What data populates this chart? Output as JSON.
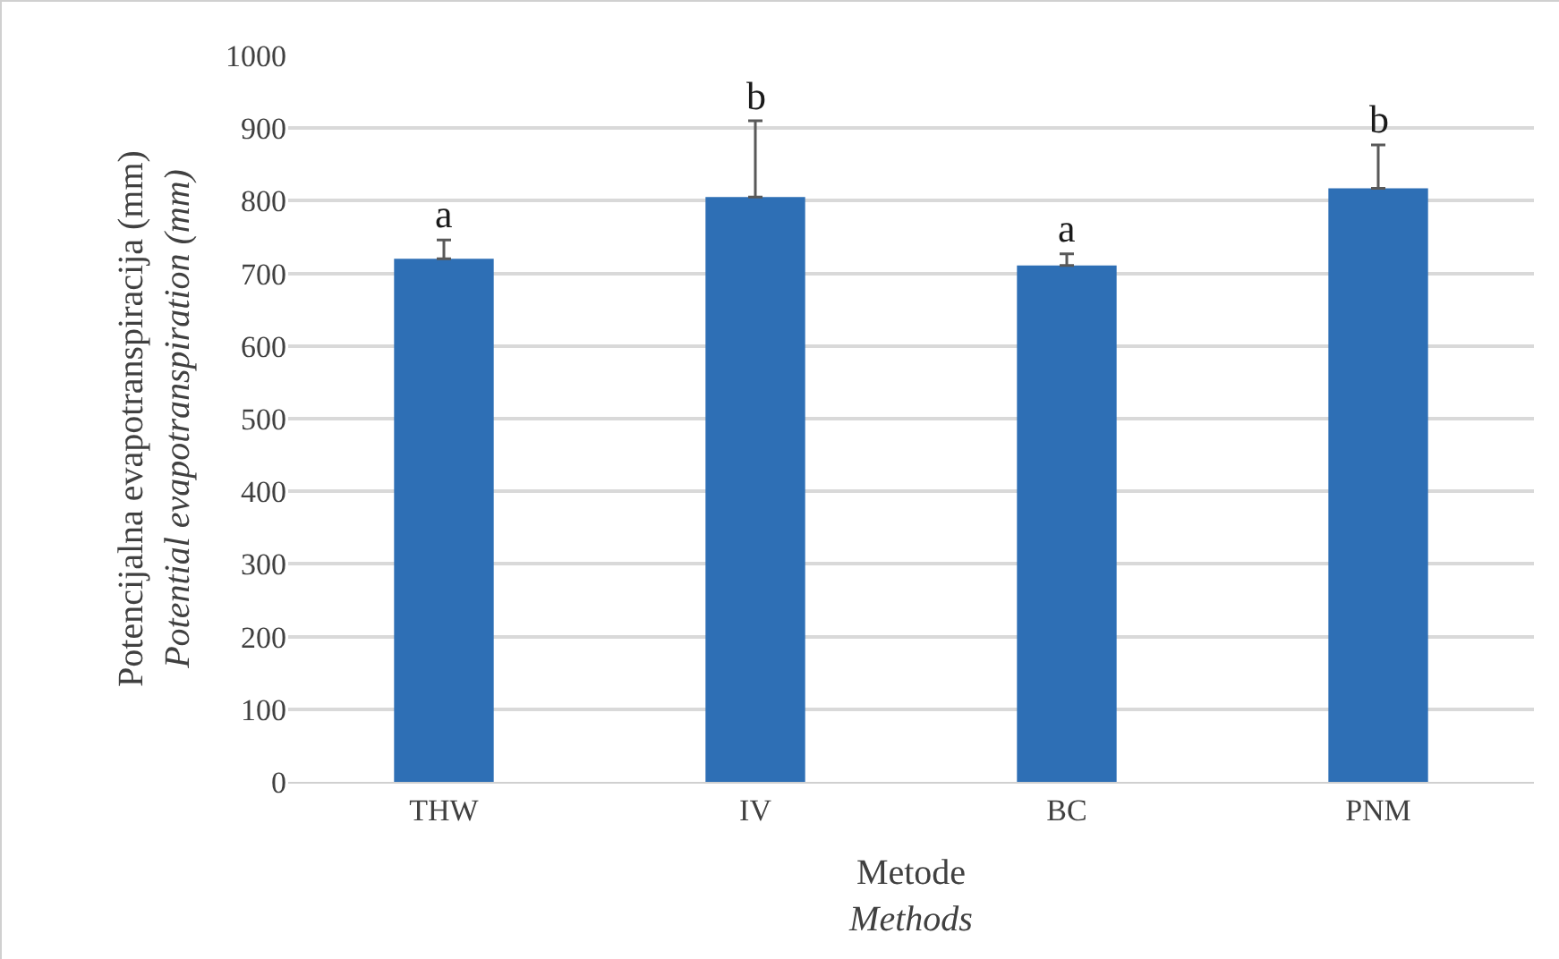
{
  "chart_data": {
    "type": "bar",
    "xlabel": "Metode\nMethods",
    "ylabel": "Potencijalna evapotranspiracija (mm)\nPotential evapotranspiration (mm)",
    "categories": [
      "THW",
      "IV",
      "BC",
      "PNM"
    ],
    "values": [
      720,
      805,
      711,
      817
    ],
    "errors": [
      [
        720,
        746
      ],
      [
        805,
        910
      ],
      [
        711,
        727
      ],
      [
        817,
        877
      ]
    ],
    "color": "#2e6fb5",
    "ylim": [
      0,
      1000
    ],
    "yticks": [
      0,
      100,
      200,
      300,
      400,
      500,
      600,
      700,
      800,
      900,
      1000
    ],
    "grid": "y",
    "annotations": [
      {
        "text": "a",
        "x": "THW",
        "y": 720
      },
      {
        "text": "b",
        "x": "IV",
        "y": 805
      },
      {
        "text": "a",
        "x": "BC",
        "y": 711
      },
      {
        "text": "b",
        "x": "PNM",
        "y": 817
      }
    ]
  }
}
